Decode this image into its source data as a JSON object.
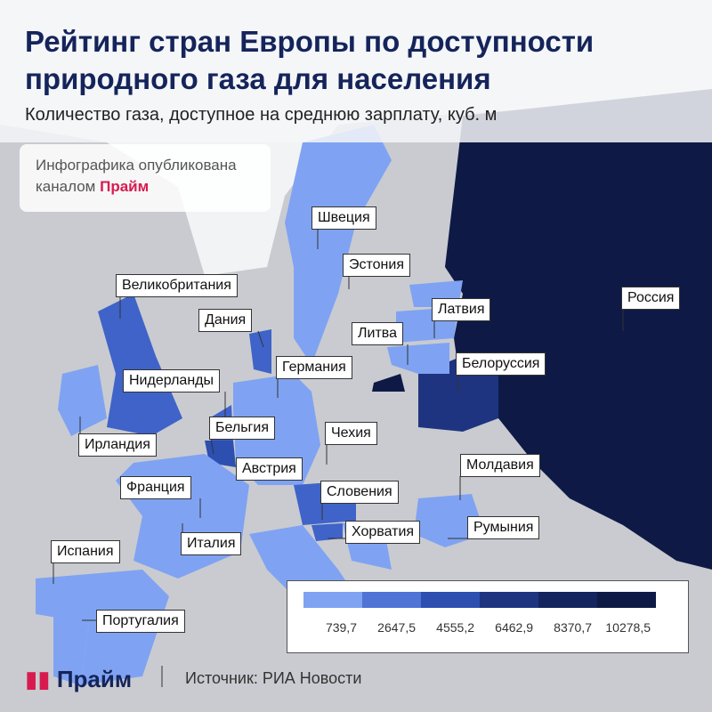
{
  "header": {
    "title_lines": [
      "Рейтинг стран Европы по доступности",
      "природного газа для населения"
    ],
    "subtitle": "Количество газа, доступное на среднюю зарплату, куб. м"
  },
  "badge": {
    "lines": [
      "Инфографика опубликована",
      "каналом"
    ],
    "brand": "Прайм"
  },
  "countries": [
    {
      "label": "Швеция"
    },
    {
      "label": "Эстония"
    },
    {
      "label": "Великобритания"
    },
    {
      "label": "Латвия"
    },
    {
      "label": "Россия"
    },
    {
      "label": "Дания"
    },
    {
      "label": "Литва"
    },
    {
      "label": "Белоруссия"
    },
    {
      "label": "Германия"
    },
    {
      "label": "Нидерланды"
    },
    {
      "label": "Бельгия"
    },
    {
      "label": "Чехия"
    },
    {
      "label": "Ирландия"
    },
    {
      "label": "Молдавия"
    },
    {
      "label": "Австрия"
    },
    {
      "label": "Франция"
    },
    {
      "label": "Словения"
    },
    {
      "label": "Хорватия"
    },
    {
      "label": "Румыния"
    },
    {
      "label": "Италия"
    },
    {
      "label": "Испания"
    },
    {
      "label": "Португалия"
    }
  ],
  "legend": {
    "labels": [
      "739,7",
      "2647,5",
      "4555,2",
      "6462,9",
      "8370,7",
      "10278,5"
    ]
  },
  "footer": {
    "brand": "Прайм",
    "source": "Источник: РИА Новости"
  }
}
